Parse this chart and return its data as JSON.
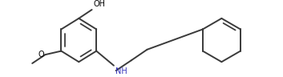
{
  "line_color": "#3a3a3a",
  "line_width": 1.4,
  "bg_color": "#ffffff",
  "text_color": "#000000",
  "nh_color": "#3333bb",
  "meo_color": "#000000",
  "fig_width": 3.53,
  "fig_height": 0.96,
  "dpi": 100,
  "oh_label": "OH",
  "meo_label": "O",
  "methyl_label": "",
  "nh_label": "NH"
}
